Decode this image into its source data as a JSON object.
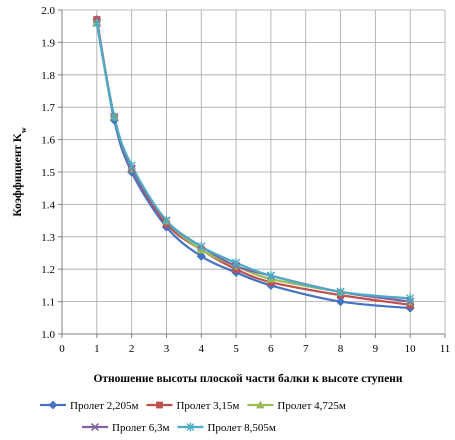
{
  "chart_data": {
    "type": "line",
    "xlabel": "Отношение высоты плоской части балки к высоте ступени",
    "ylabel_main": "Коэффициент K",
    "ylabel_sub": "w",
    "xlim": [
      0,
      11
    ],
    "ylim": [
      1.0,
      2.0
    ],
    "xticks": [
      0,
      1,
      2,
      3,
      4,
      5,
      6,
      7,
      8,
      9,
      10,
      11
    ],
    "yticks": [
      1.0,
      1.1,
      1.2,
      1.3,
      1.4,
      1.5,
      1.6,
      1.7,
      1.8,
      1.9,
      2.0
    ],
    "grid": true,
    "legend_position": "bottom",
    "series": [
      {
        "name": "Пролет 2,205м",
        "color": "#4472C4",
        "marker": "diamond",
        "x": [
          1,
          1.5,
          2,
          3,
          4,
          5,
          6,
          8,
          10
        ],
        "y": [
          1.97,
          1.66,
          1.5,
          1.33,
          1.24,
          1.19,
          1.15,
          1.1,
          1.08
        ]
      },
      {
        "name": "Пролет 3,15м",
        "color": "#C0504D",
        "marker": "square",
        "x": [
          1,
          1.5,
          2,
          3,
          4,
          5,
          6,
          8,
          10
        ],
        "y": [
          1.97,
          1.67,
          1.51,
          1.34,
          1.26,
          1.2,
          1.16,
          1.12,
          1.09
        ]
      },
      {
        "name": "Пролет 4,725м",
        "color": "#9BBB59",
        "marker": "triangle",
        "x": [
          1,
          1.5,
          2,
          3,
          4,
          5,
          6,
          8,
          10
        ],
        "y": [
          1.96,
          1.67,
          1.51,
          1.35,
          1.26,
          1.21,
          1.17,
          1.13,
          1.1
        ]
      },
      {
        "name": "Пролет 6,3м",
        "color": "#8064A2",
        "marker": "x",
        "x": [
          1,
          1.5,
          2,
          3,
          4,
          5,
          6,
          8,
          10
        ],
        "y": [
          1.96,
          1.67,
          1.51,
          1.35,
          1.27,
          1.21,
          1.18,
          1.13,
          1.1
        ]
      },
      {
        "name": "Пролет 8,505м",
        "color": "#4BACC6",
        "marker": "star",
        "x": [
          1,
          1.5,
          2,
          3,
          4,
          5,
          6,
          8,
          10
        ],
        "y": [
          1.96,
          1.67,
          1.52,
          1.35,
          1.27,
          1.22,
          1.18,
          1.13,
          1.11
        ]
      }
    ]
  }
}
